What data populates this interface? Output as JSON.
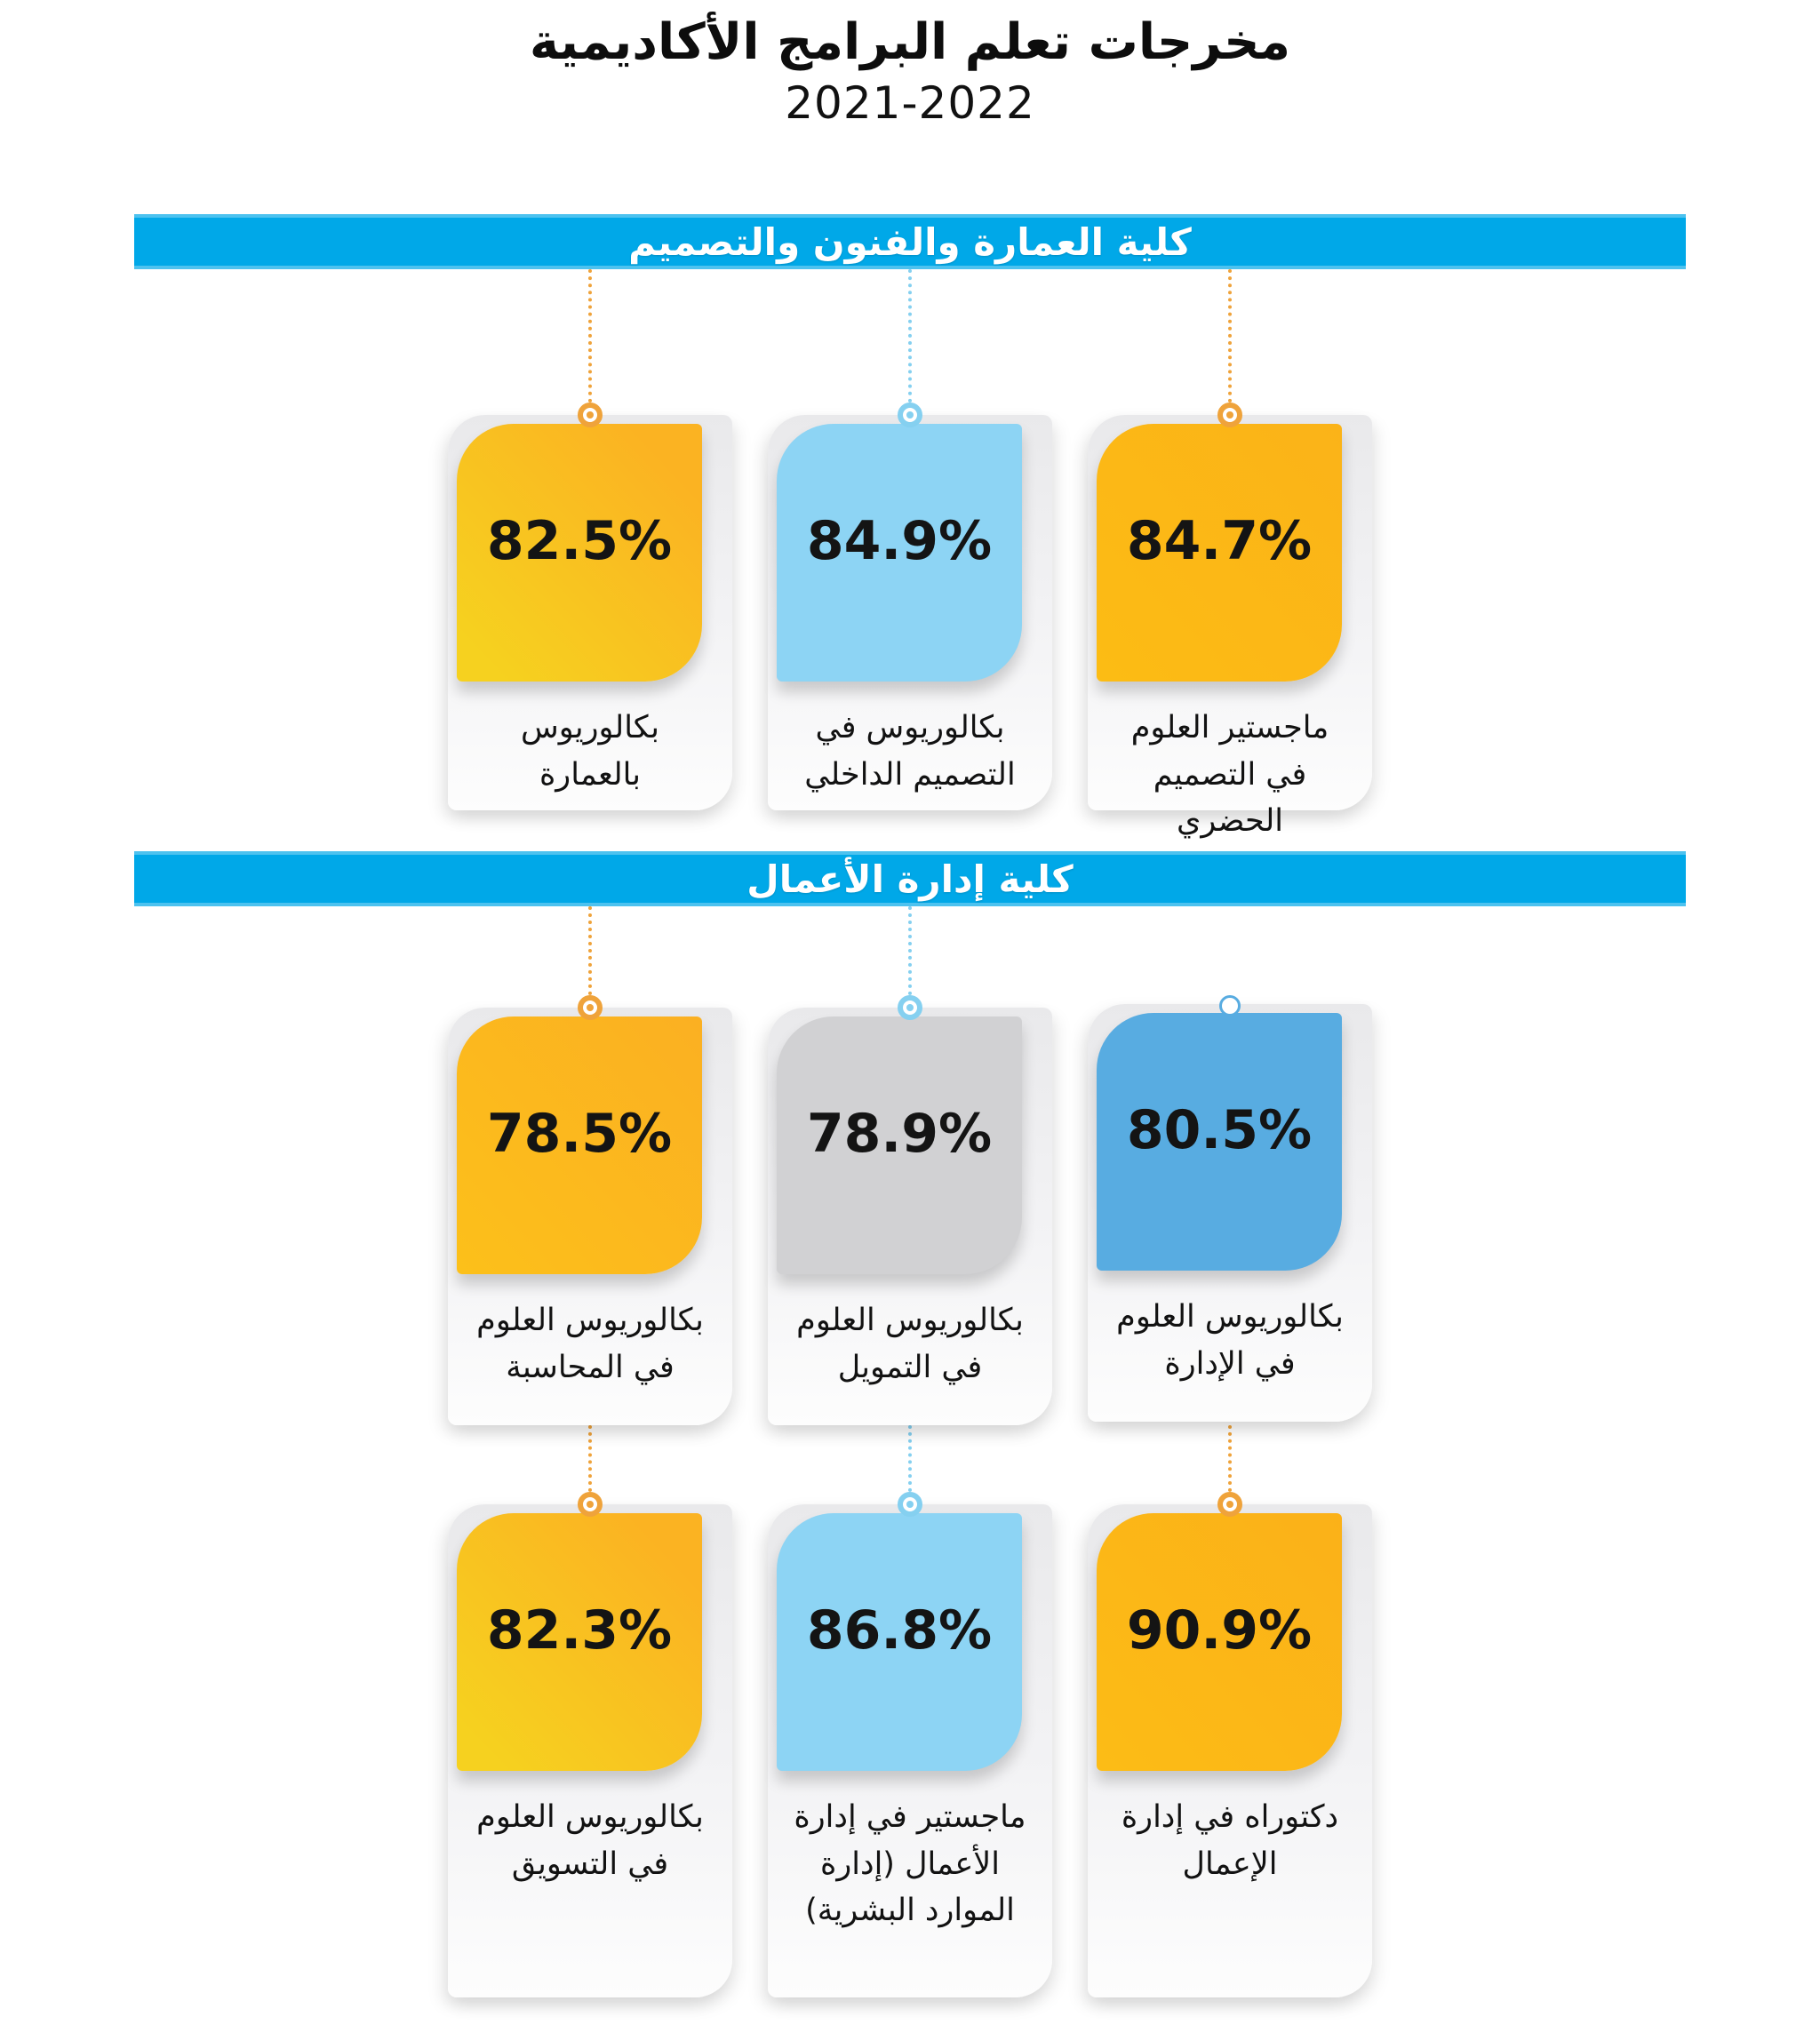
{
  "title": {
    "line1": "مخرجات تعلم البرامج الأكاديمية",
    "line2": "2021-2022"
  },
  "colors": {
    "band_blue": "#00A8E8",
    "panel_gray_top": "#E9E9EB",
    "orange": "#FBB517",
    "yellow": "#F6D11F",
    "light_blue": "#8DD4F4",
    "mid_blue": "#58ACE1",
    "gray_card": "#D1D1D3",
    "ring_orange": "#EFA33B"
  },
  "sections": [
    {
      "header": "كلية العمارة والفنون والتصميم",
      "rows": [
        {
          "cards": [
            {
              "value": "82.5%",
              "label": "بكالوريوس بالعمارة",
              "background": "linear-gradient(to top right, #F6D11F 10%, #FBB322 85%)",
              "accent": "#EFA33B"
            },
            {
              "value": "84.9%",
              "label": "بكالوريوس في التصميم الداخلي",
              "background": "#8DD4F4",
              "accent": "#85D0F0"
            },
            {
              "value": "84.7%",
              "label": "ماجستير العلوم في التصميم الحضري",
              "background": "linear-gradient(to top right, #FCBC14, #FBB318)",
              "accent": "#EFA33B"
            }
          ]
        }
      ]
    },
    {
      "header": "كلية إدارة الأعمال",
      "rows": [
        {
          "cards": [
            {
              "value": "78.5%",
              "label": "بكالوريوس العلوم في المحاسبة",
              "background": "linear-gradient(to top right, #FCC01A, #FBB022)",
              "accent": "#EFA33B"
            },
            {
              "value": "78.9%",
              "label": "بكالوريوس العلوم في التمويل",
              "background": "#D1D1D3",
              "accent": "#85D0F0"
            },
            {
              "value": "80.5%",
              "label": "بكالوريوس العلوم في الإدارة",
              "background": "#58ACE1",
              "accent": "#58ACE1"
            }
          ]
        },
        {
          "cards": [
            {
              "value": "82.3%",
              "label": "بكالوريوس العلوم في التسويق",
              "background": "linear-gradient(to top right, #F6D11F 10%, #FBB322 85%)",
              "accent": "#EFA33B"
            },
            {
              "value": "86.8%",
              "label": "ماجستير في إدارة الأعمال (إدارة الموارد البشرية)",
              "background": "#8DD4F4",
              "accent": "#85D0F0"
            },
            {
              "value": "90.9%",
              "label": "دكتوراه في إدارة الإعمال",
              "background": "linear-gradient(to top right, #FCBC16, #FBB118)",
              "accent": "#EFA33B"
            }
          ]
        }
      ]
    }
  ],
  "chart_data": [
    {
      "type": "table",
      "title": "كلية العمارة والفنون والتصميم",
      "categories": [
        "بكالوريوس بالعمارة",
        "بكالوريوس في التصميم الداخلي",
        "ماجستير العلوم في التصميم الحضري"
      ],
      "values": [
        82.5,
        84.9,
        84.7
      ],
      "unit": "%"
    },
    {
      "type": "table",
      "title": "كلية إدارة الأعمال",
      "categories": [
        "بكالوريوس العلوم في المحاسبة",
        "بكالوريوس العلوم في التمويل",
        "بكالوريوس العلوم في الإدارة",
        "بكالوريوس العلوم في التسويق",
        "ماجستير في إدارة الأعمال (إدارة الموارد البشرية)",
        "دكتوراه في إدارة الإعمال"
      ],
      "values": [
        78.5,
        78.9,
        80.5,
        82.3,
        86.8,
        90.9
      ],
      "unit": "%"
    }
  ]
}
